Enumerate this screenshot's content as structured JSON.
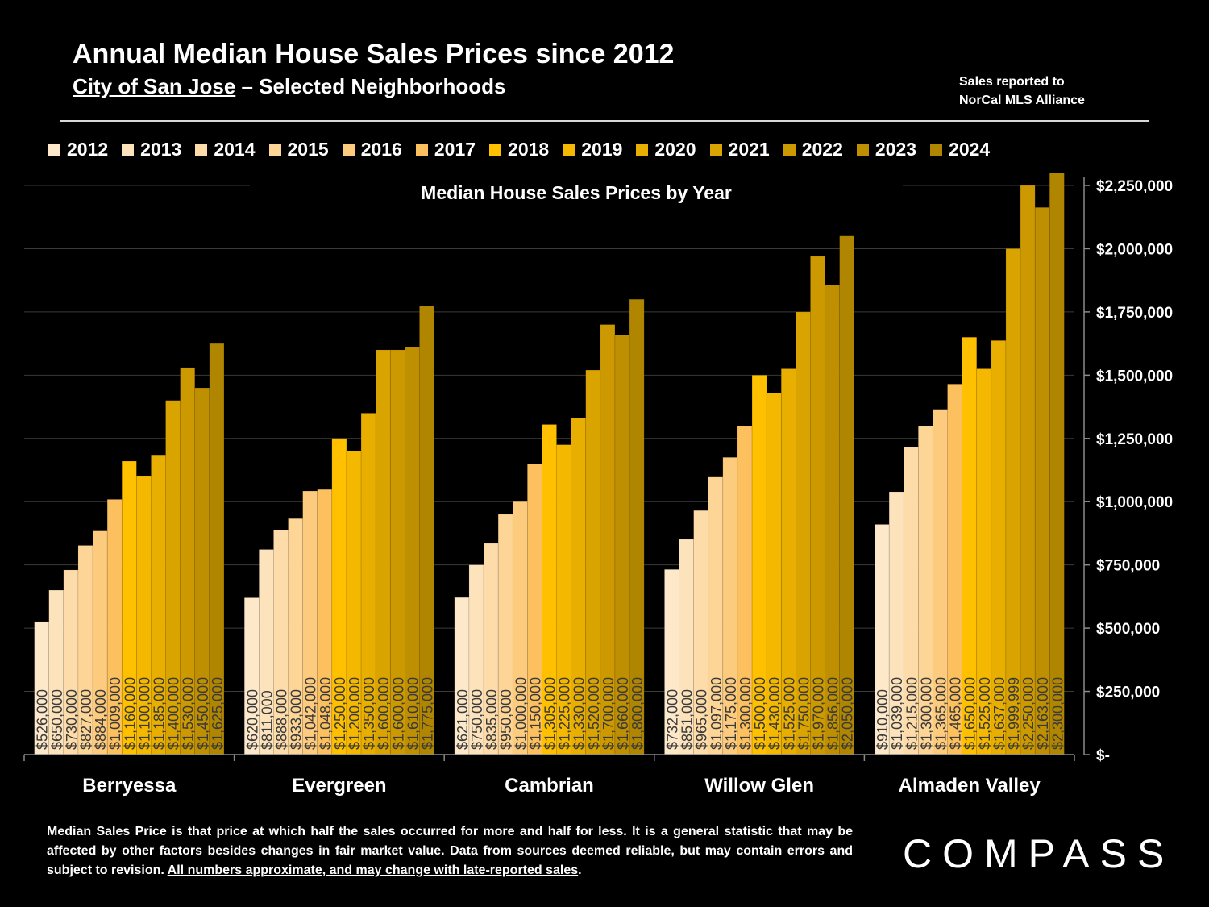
{
  "header": {
    "title": "Annual Median House Sales Prices since 2012",
    "subtitle_underlined": "City of San Jose",
    "subtitle_rest": " – Selected Neighborhoods",
    "source_line1": "Sales reported to",
    "source_line2": "NorCal MLS Alliance"
  },
  "chart_data": {
    "type": "bar",
    "title": "Median House Sales Prices by Year",
    "categories": [
      "Berryessa",
      "Evergreen",
      "Cambrian",
      "Willow Glen",
      "Almaden Valley"
    ],
    "series": [
      {
        "name": "2012",
        "color": "#fde9c9",
        "values": [
          526000,
          620000,
          621000,
          732000,
          910000
        ]
      },
      {
        "name": "2013",
        "color": "#fde3bb",
        "values": [
          650000,
          811000,
          750000,
          851000,
          1039000
        ]
      },
      {
        "name": "2014",
        "color": "#fddcaa",
        "values": [
          730000,
          888000,
          835000,
          965000,
          1215000
        ]
      },
      {
        "name": "2015",
        "color": "#fdd596",
        "values": [
          827000,
          933000,
          950000,
          1097000,
          1300000
        ]
      },
      {
        "name": "2016",
        "color": "#fdcb7e",
        "values": [
          884000,
          1042000,
          1000000,
          1175000,
          1365000
        ]
      },
      {
        "name": "2017",
        "color": "#fdc05e",
        "values": [
          1009000,
          1048000,
          1150000,
          1300000,
          1465000
        ]
      },
      {
        "name": "2018",
        "color": "#ffc000",
        "values": [
          1160000,
          1250000,
          1305000,
          1500000,
          1650000
        ]
      },
      {
        "name": "2019",
        "color": "#f4b800",
        "values": [
          1100000,
          1200000,
          1225000,
          1430000,
          1525000
        ]
      },
      {
        "name": "2020",
        "color": "#e8ae00",
        "values": [
          1185000,
          1350000,
          1330000,
          1525000,
          1637000
        ]
      },
      {
        "name": "2021",
        "color": "#d9a300",
        "values": [
          1400000,
          1600000,
          1520000,
          1750000,
          1999999
        ]
      },
      {
        "name": "2022",
        "color": "#cc9900",
        "values": [
          1530000,
          1600000,
          1700000,
          1970000,
          2250000
        ]
      },
      {
        "name": "2023",
        "color": "#be8f00",
        "values": [
          1450000,
          1610000,
          1660000,
          1856000,
          2163000
        ]
      },
      {
        "name": "2024",
        "color": "#b08500",
        "values": [
          1625000,
          1775000,
          1800000,
          2050000,
          2300000
        ]
      }
    ],
    "data_labels": [
      [
        "$526,000",
        "$650,000",
        "$730,000",
        "$827,000",
        "$884,000",
        "$1,009,000",
        "$1,160,000",
        "$1,100,000",
        "$1,185,000",
        "$1,400,000",
        "$1,530,000",
        "$1,450,000",
        "$1,625,000"
      ],
      [
        "$620,000",
        "$811,000",
        "$888,000",
        "$933,000",
        "$1,042,000",
        "$1,048,000",
        "$1,250,000",
        "$1,200,000",
        "$1,350,000",
        "$1,600,000",
        "$1,600,000",
        "$1,610,000",
        "$1,775,000"
      ],
      [
        "$621,000",
        "$750,000",
        "$835,000",
        "$950,000",
        "$1,000,000",
        "$1,150,000",
        "$1,305,000",
        "$1,225,000",
        "$1,330,000",
        "$1,520,000",
        "$1,700,000",
        "$1,660,000",
        "$1,800,000"
      ],
      [
        "$732,000",
        "$851,000",
        "$965,000",
        "$1,097,000",
        "$1,175,000",
        "$1,300,000",
        "$1,500,000",
        "$1,430,000",
        "$1,525,000",
        "$1,750,000",
        "$1,970,000",
        "$1,856,000",
        "$2,050,000"
      ],
      [
        "$910,000",
        "$1,039,000",
        "$1,215,000",
        "$1,300,000",
        "$1,365,000",
        "$1,465,000",
        "$1,650,000",
        "$1,525,000",
        "$1,637,000",
        "$1,999,999",
        "$2,250,000",
        "$2,163,000",
        "$2,300,000"
      ]
    ],
    "y_ticks": [
      {
        "value": 0,
        "label": "$-"
      },
      {
        "value": 250000,
        "label": "$250,000"
      },
      {
        "value": 500000,
        "label": "$500,000"
      },
      {
        "value": 750000,
        "label": "$750,000"
      },
      {
        "value": 1000000,
        "label": "$1,000,000"
      },
      {
        "value": 1250000,
        "label": "$1,250,000"
      },
      {
        "value": 1500000,
        "label": "$1,500,000"
      },
      {
        "value": 1750000,
        "label": "$1,750,000"
      },
      {
        "value": 2000000,
        "label": "$2,000,000"
      },
      {
        "value": 2250000,
        "label": "$2,250,000"
      }
    ],
    "ylim": [
      0,
      2250000
    ],
    "grid": true,
    "legend_position": "top"
  },
  "footer": {
    "footnote_main": "Median Sales Price is that price at which half the sales occurred for more and half for less. It is a general statistic that may be affected by other factors besides changes in fair market value. Data from sources deemed reliable, but may contain errors and subject to revision. ",
    "footnote_underlined": "All numbers approximate, and may change with late-reported sales",
    "footnote_end": ".",
    "logo": "COMPASS"
  }
}
